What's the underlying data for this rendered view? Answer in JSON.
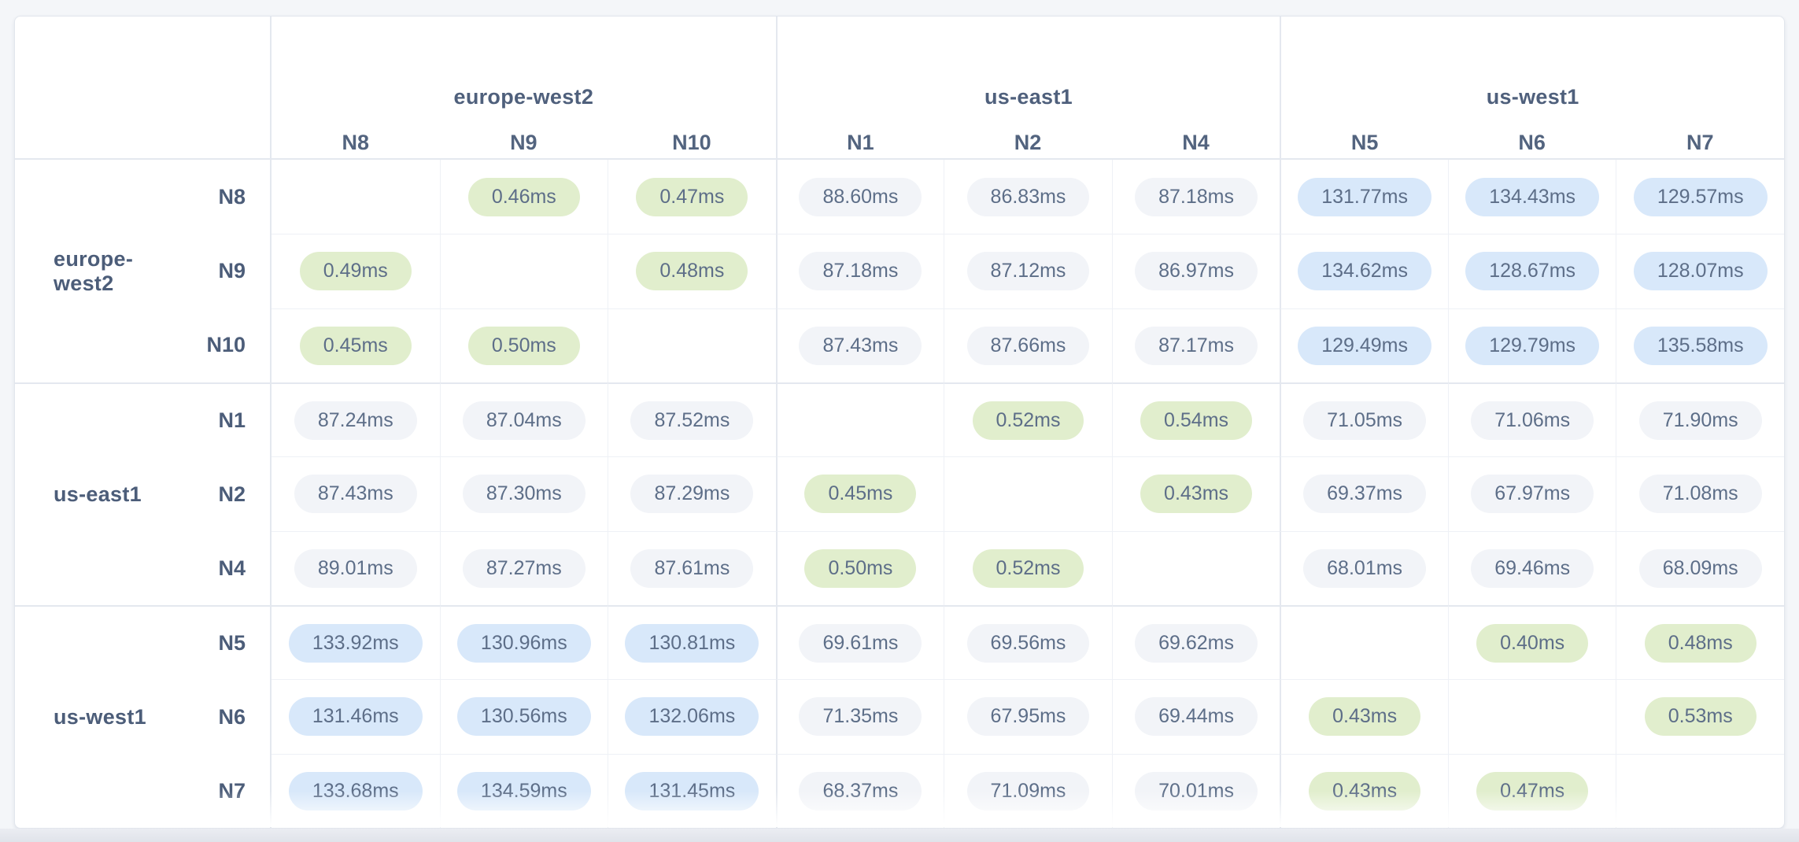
{
  "app": {
    "description": "Inter-node network latency matrix grouped by region"
  },
  "colors": {
    "pill_green": "#e1eecd",
    "pill_blue": "#d8e8fa",
    "pill_gray": "#f2f4f8",
    "value_text": "#5d6e88",
    "label_text": "#4c5d79",
    "page_bg": "#f4f6f9"
  },
  "matrix": {
    "col_groups": [
      {
        "region": "europe-west2",
        "nodes": [
          "N8",
          "N9",
          "N10"
        ]
      },
      {
        "region": "us-east1",
        "nodes": [
          "N1",
          "N2",
          "N4"
        ]
      },
      {
        "region": "us-west1",
        "nodes": [
          "N5",
          "N6",
          "N7"
        ]
      }
    ],
    "row_groups": [
      {
        "region": "europe-west2",
        "rows": [
          {
            "node": "N8",
            "cells": [
              {
                "v": "",
                "c": "none"
              },
              {
                "v": "0.46ms",
                "c": "green"
              },
              {
                "v": "0.47ms",
                "c": "green"
              },
              {
                "v": "88.60ms",
                "c": "gray"
              },
              {
                "v": "86.83ms",
                "c": "gray"
              },
              {
                "v": "87.18ms",
                "c": "gray"
              },
              {
                "v": "131.77ms",
                "c": "blue"
              },
              {
                "v": "134.43ms",
                "c": "blue"
              },
              {
                "v": "129.57ms",
                "c": "blue"
              }
            ]
          },
          {
            "node": "N9",
            "cells": [
              {
                "v": "0.49ms",
                "c": "green"
              },
              {
                "v": "",
                "c": "none"
              },
              {
                "v": "0.48ms",
                "c": "green"
              },
              {
                "v": "87.18ms",
                "c": "gray"
              },
              {
                "v": "87.12ms",
                "c": "gray"
              },
              {
                "v": "86.97ms",
                "c": "gray"
              },
              {
                "v": "134.62ms",
                "c": "blue"
              },
              {
                "v": "128.67ms",
                "c": "blue"
              },
              {
                "v": "128.07ms",
                "c": "blue"
              }
            ]
          },
          {
            "node": "N10",
            "cells": [
              {
                "v": "0.45ms",
                "c": "green"
              },
              {
                "v": "0.50ms",
                "c": "green"
              },
              {
                "v": "",
                "c": "none"
              },
              {
                "v": "87.43ms",
                "c": "gray"
              },
              {
                "v": "87.66ms",
                "c": "gray"
              },
              {
                "v": "87.17ms",
                "c": "gray"
              },
              {
                "v": "129.49ms",
                "c": "blue"
              },
              {
                "v": "129.79ms",
                "c": "blue"
              },
              {
                "v": "135.58ms",
                "c": "blue"
              }
            ]
          }
        ]
      },
      {
        "region": "us-east1",
        "rows": [
          {
            "node": "N1",
            "cells": [
              {
                "v": "87.24ms",
                "c": "gray"
              },
              {
                "v": "87.04ms",
                "c": "gray"
              },
              {
                "v": "87.52ms",
                "c": "gray"
              },
              {
                "v": "",
                "c": "none"
              },
              {
                "v": "0.52ms",
                "c": "green"
              },
              {
                "v": "0.54ms",
                "c": "green"
              },
              {
                "v": "71.05ms",
                "c": "gray"
              },
              {
                "v": "71.06ms",
                "c": "gray"
              },
              {
                "v": "71.90ms",
                "c": "gray"
              }
            ]
          },
          {
            "node": "N2",
            "cells": [
              {
                "v": "87.43ms",
                "c": "gray"
              },
              {
                "v": "87.30ms",
                "c": "gray"
              },
              {
                "v": "87.29ms",
                "c": "gray"
              },
              {
                "v": "0.45ms",
                "c": "green"
              },
              {
                "v": "",
                "c": "none"
              },
              {
                "v": "0.43ms",
                "c": "green"
              },
              {
                "v": "69.37ms",
                "c": "gray"
              },
              {
                "v": "67.97ms",
                "c": "gray"
              },
              {
                "v": "71.08ms",
                "c": "gray"
              }
            ]
          },
          {
            "node": "N4",
            "cells": [
              {
                "v": "89.01ms",
                "c": "gray"
              },
              {
                "v": "87.27ms",
                "c": "gray"
              },
              {
                "v": "87.61ms",
                "c": "gray"
              },
              {
                "v": "0.50ms",
                "c": "green"
              },
              {
                "v": "0.52ms",
                "c": "green"
              },
              {
                "v": "",
                "c": "none"
              },
              {
                "v": "68.01ms",
                "c": "gray"
              },
              {
                "v": "69.46ms",
                "c": "gray"
              },
              {
                "v": "68.09ms",
                "c": "gray"
              }
            ]
          }
        ]
      },
      {
        "region": "us-west1",
        "rows": [
          {
            "node": "N5",
            "cells": [
              {
                "v": "133.92ms",
                "c": "blue"
              },
              {
                "v": "130.96ms",
                "c": "blue"
              },
              {
                "v": "130.81ms",
                "c": "blue"
              },
              {
                "v": "69.61ms",
                "c": "gray"
              },
              {
                "v": "69.56ms",
                "c": "gray"
              },
              {
                "v": "69.62ms",
                "c": "gray"
              },
              {
                "v": "",
                "c": "none"
              },
              {
                "v": "0.40ms",
                "c": "green"
              },
              {
                "v": "0.48ms",
                "c": "green"
              }
            ]
          },
          {
            "node": "N6",
            "cells": [
              {
                "v": "131.46ms",
                "c": "blue"
              },
              {
                "v": "130.56ms",
                "c": "blue"
              },
              {
                "v": "132.06ms",
                "c": "blue"
              },
              {
                "v": "71.35ms",
                "c": "gray"
              },
              {
                "v": "67.95ms",
                "c": "gray"
              },
              {
                "v": "69.44ms",
                "c": "gray"
              },
              {
                "v": "0.43ms",
                "c": "green"
              },
              {
                "v": "",
                "c": "none"
              },
              {
                "v": "0.53ms",
                "c": "green"
              }
            ]
          },
          {
            "node": "N7",
            "cells": [
              {
                "v": "133.68ms",
                "c": "blue"
              },
              {
                "v": "134.59ms",
                "c": "blue"
              },
              {
                "v": "131.45ms",
                "c": "blue"
              },
              {
                "v": "68.37ms",
                "c": "gray"
              },
              {
                "v": "71.09ms",
                "c": "gray"
              },
              {
                "v": "70.01ms",
                "c": "gray"
              },
              {
                "v": "0.43ms",
                "c": "green"
              },
              {
                "v": "0.47ms",
                "c": "green"
              },
              {
                "v": "",
                "c": "none"
              }
            ]
          }
        ]
      }
    ]
  }
}
